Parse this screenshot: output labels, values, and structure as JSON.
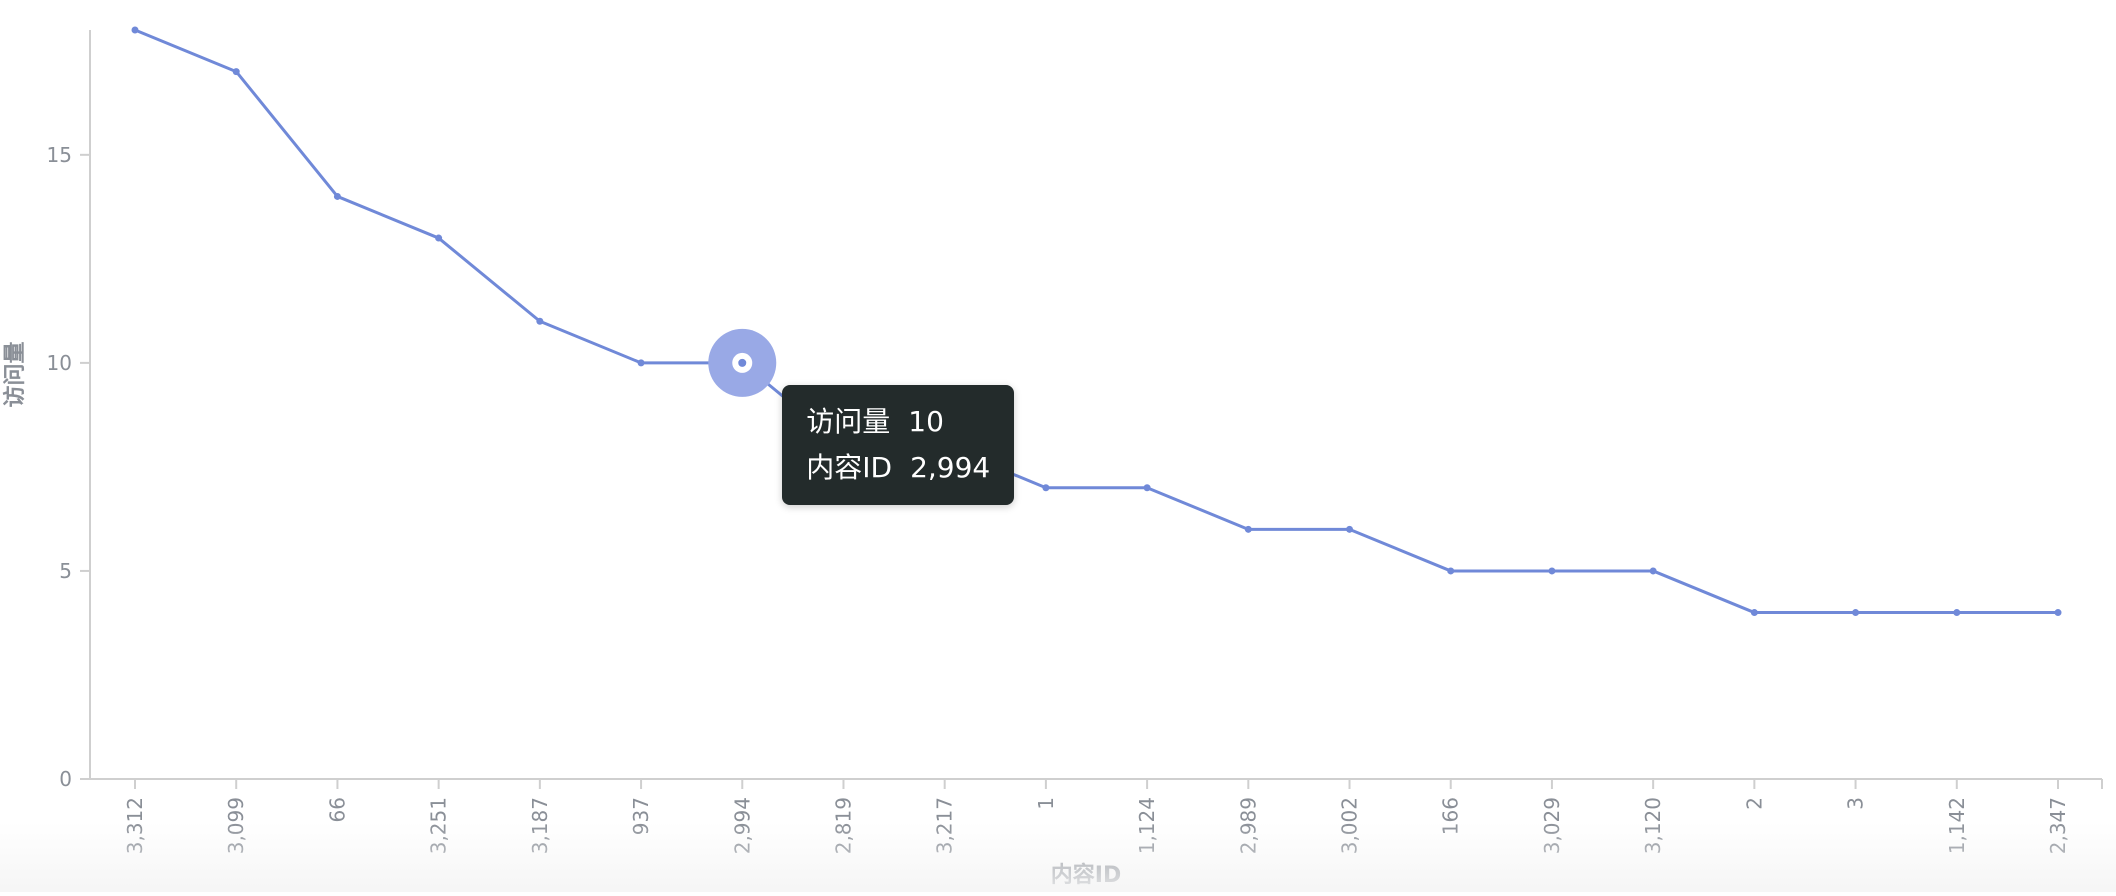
{
  "chart_data": {
    "type": "line",
    "xlabel": "内容ID",
    "ylabel": "访问量",
    "ylim": [
      0,
      18
    ],
    "yticks": [
      0,
      5,
      10,
      15
    ],
    "categories": [
      "3,312",
      "3,099",
      "66",
      "3,251",
      "3,187",
      "937",
      "2,994",
      "2,819",
      "3,217",
      "1",
      "1,124",
      "2,989",
      "3,002",
      "166",
      "3,029",
      "3,120",
      "2",
      "3",
      "1,142",
      "2,347"
    ],
    "series": [
      {
        "values": [
          18,
          17,
          14,
          13,
          11,
          10,
          10,
          8,
          8,
          7,
          7,
          6,
          6,
          5,
          5,
          5,
          4,
          4,
          4,
          4
        ],
        "color": "#7089d8"
      }
    ],
    "grid": false,
    "tooltip": {
      "active_index": 6,
      "rows": [
        {
          "label": "访问量",
          "value": "10"
        },
        {
          "label": "内容ID",
          "value": "2,994"
        }
      ]
    },
    "colors": {
      "line": "#7089d8",
      "highlight": "#99a9e6",
      "axis": "#cfcfcf",
      "tick_text": "#8a8f97",
      "axis_label": "#8a8f97",
      "tooltip_bg": "#232b2b"
    }
  }
}
